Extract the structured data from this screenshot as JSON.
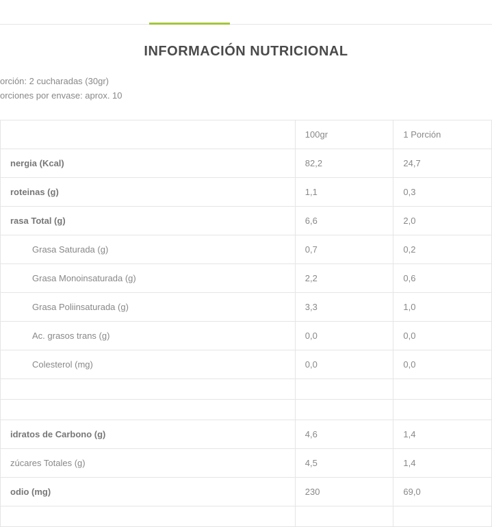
{
  "title": "INFORMACIÓN NUTRICIONAL",
  "serving": {
    "line1": "orción: 2 cucharadas (30gr)",
    "line2": "orciones por envase: aprox. 10"
  },
  "columns": {
    "c1": "100gr",
    "c2": "1 Porción"
  },
  "rows": [
    {
      "label": "nergia (Kcal)",
      "v1": "82,2",
      "v2": "24,7",
      "bold": true,
      "indent": false
    },
    {
      "label": "roteinas (g)",
      "v1": "1,1",
      "v2": "0,3",
      "bold": true,
      "indent": false
    },
    {
      "label": "rasa Total (g)",
      "v1": "6,6",
      "v2": "2,0",
      "bold": true,
      "indent": false
    },
    {
      "label": "Grasa Saturada (g)",
      "v1": "0,7",
      "v2": "0,2",
      "bold": false,
      "indent": true
    },
    {
      "label": "Grasa Monoinsaturada (g)",
      "v1": "2,2",
      "v2": "0,6",
      "bold": false,
      "indent": true
    },
    {
      "label": "Grasa Poliinsaturada (g)",
      "v1": "3,3",
      "v2": "1,0",
      "bold": false,
      "indent": true
    },
    {
      "label": "Ac. grasos trans (g)",
      "v1": "0,0",
      "v2": "0,0",
      "bold": false,
      "indent": true
    },
    {
      "label": "Colesterol (mg)",
      "v1": "0,0",
      "v2": "0,0",
      "bold": false,
      "indent": true
    },
    {
      "empty": true
    },
    {
      "empty": true
    },
    {
      "label": "idratos de Carbono (g)",
      "v1": "4,6",
      "v2": "1,4",
      "bold": true,
      "indent": false
    },
    {
      "label": "zúcares Totales (g)",
      "v1": "4,5",
      "v2": "1,4",
      "bold": false,
      "indent": false
    },
    {
      "label": "odio (mg)",
      "v1": "230",
      "v2": "69,0",
      "bold": true,
      "indent": false
    },
    {
      "empty": true
    }
  ],
  "colors": {
    "accent": "#a4c639",
    "border": "#e5e5e5",
    "text": "#888888",
    "title": "#4a4a4a",
    "background": "#ffffff"
  }
}
